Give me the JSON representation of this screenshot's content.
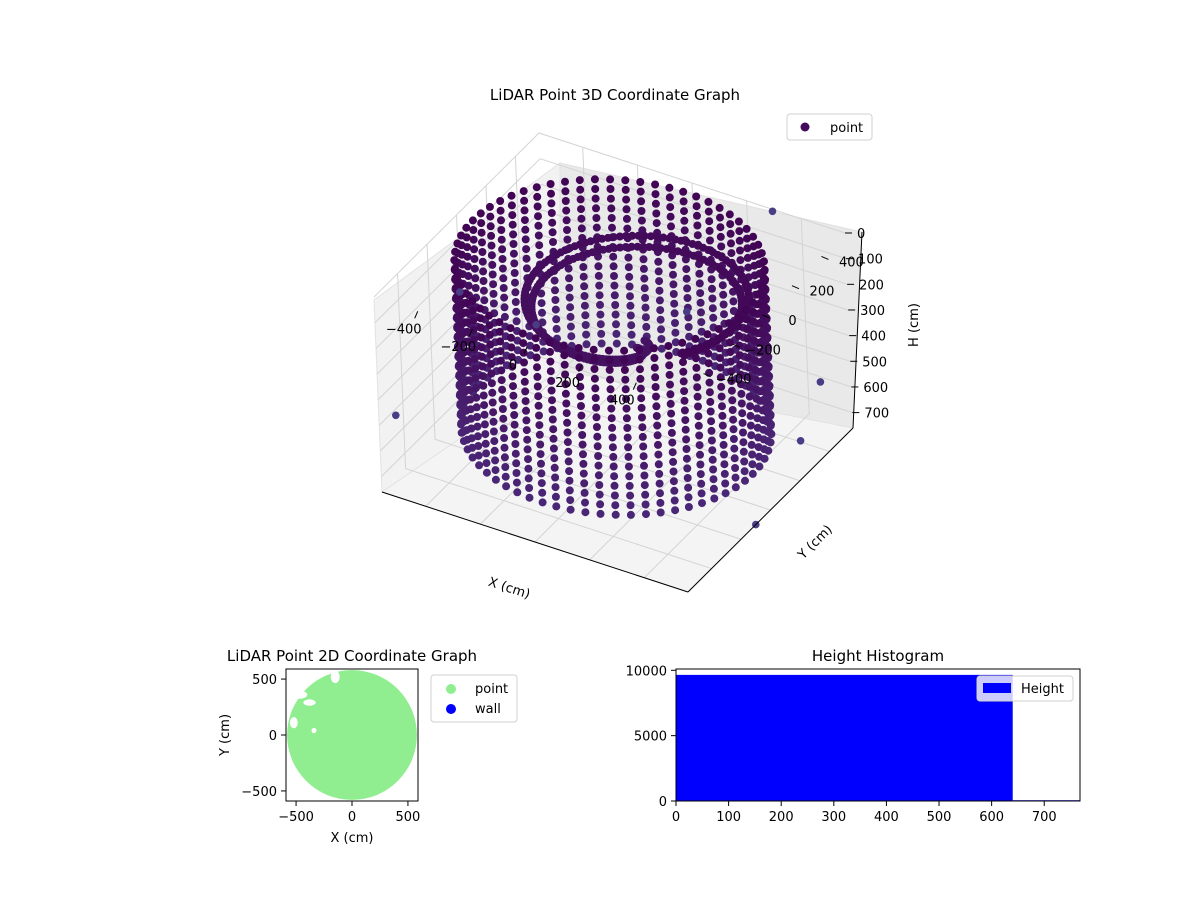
{
  "chart_data": [
    {
      "type": "scatter3d",
      "title": "LiDAR Point 3D Coordinate Graph",
      "xlabel": "X (cm)",
      "ylabel": "Y (cm)",
      "zlabel": "H (cm)",
      "xticks": [
        -400,
        -200,
        0,
        200,
        400
      ],
      "yticks": [
        -400,
        -200,
        0,
        200,
        400
      ],
      "zticks": [
        0,
        100,
        200,
        300,
        400,
        500,
        600,
        700
      ],
      "xlim": [
        -560,
        560
      ],
      "ylim": [
        -560,
        560
      ],
      "zlim": [
        0,
        760
      ],
      "z_inverted": true,
      "legend": [
        "point"
      ],
      "legend_position": "top-right",
      "grid": true,
      "colormap": "viridis",
      "point_color": "#440a5c",
      "structure": {
        "type": "cylindrical-wall",
        "wall_radius": 500,
        "height_range": [
          0,
          640
        ],
        "inner_spiral_radius": [
          100,
          500
        ],
        "outlier_points": [
          {
            "x": -520,
            "y": -520,
            "h": 470
          },
          {
            "x": -560,
            "y": 0,
            "h": 300
          },
          {
            "x": -480,
            "y": 350,
            "h": 600
          },
          {
            "x": 300,
            "y": 550,
            "h": 0
          },
          {
            "x": 520,
            "y": 430,
            "h": 520
          },
          {
            "x": 540,
            "y": 250,
            "h": 640
          },
          {
            "x": 560,
            "y": -100,
            "h": 760
          },
          {
            "x": 120,
            "y": 280,
            "h": 300
          }
        ]
      }
    },
    {
      "type": "scatter",
      "title": "LiDAR Point 2D Coordinate Graph",
      "xlabel": "X (cm)",
      "ylabel": "Y (cm)",
      "xticks": [
        -500,
        0,
        500
      ],
      "yticks": [
        -500,
        0,
        500
      ],
      "xlim": [
        -590,
        590
      ],
      "ylim": [
        -590,
        590
      ],
      "legend_position": "outside-right",
      "series": [
        {
          "name": "point",
          "color": "#90ee90",
          "region": "filled-circle",
          "radius": 580
        },
        {
          "name": "wall",
          "color": "#0000ff",
          "points": []
        }
      ]
    },
    {
      "type": "histogram",
      "title": "Height Histogram",
      "xticks": [
        0,
        100,
        200,
        300,
        400,
        500,
        600,
        700
      ],
      "yticks": [
        0,
        5000,
        10000
      ],
      "xlim": [
        0,
        768
      ],
      "ylim": [
        0,
        10100
      ],
      "legend": [
        "Height"
      ],
      "legend_position": "top-right",
      "color": "#0000ff",
      "bins": [
        {
          "start": 0,
          "end": 640,
          "count": 9650
        },
        {
          "start": 640,
          "end": 768,
          "count": 60
        }
      ]
    }
  ]
}
